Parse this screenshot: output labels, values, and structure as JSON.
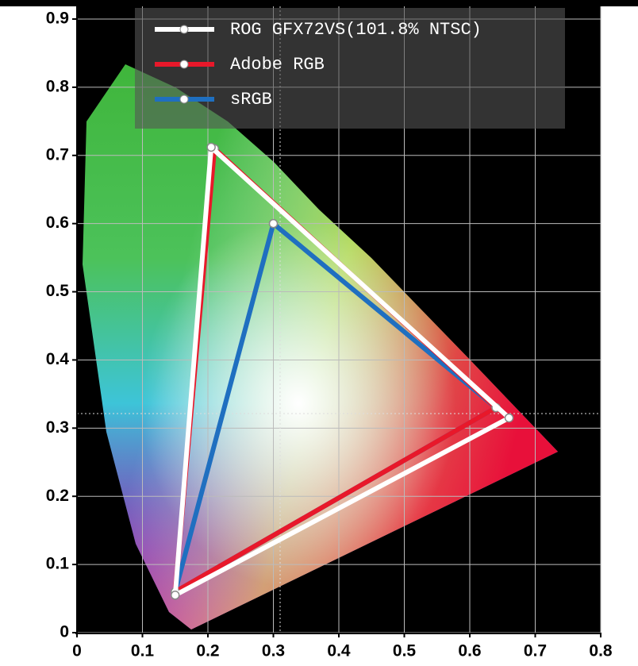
{
  "chart_data": {
    "type": "line",
    "series": [
      {
        "name": "sRGB",
        "color": "#1f6fc0",
        "x": [
          0.64,
          0.3,
          0.15
        ],
        "values": [
          0.33,
          0.6,
          0.06
        ]
      },
      {
        "name": "Adobe RGB",
        "color": "#e8182a",
        "x": [
          0.64,
          0.21,
          0.15
        ],
        "values": [
          0.33,
          0.71,
          0.06
        ]
      },
      {
        "name": "ROG GFX72VS(101.8% NTSC)",
        "color": "#ffffff",
        "x": [
          0.66,
          0.205,
          0.15
        ],
        "values": [
          0.315,
          0.712,
          0.055
        ]
      }
    ],
    "xlim": [
      0,
      0.8
    ],
    "xticks": [
      0,
      0.1,
      0.2,
      0.3,
      0.4,
      0.5,
      0.6,
      0.7,
      0.8
    ],
    "ylim": [
      0,
      0.9
    ],
    "yticks": [
      0,
      0.1,
      0.2,
      0.3,
      0.4,
      0.5,
      0.6,
      0.7,
      0.8,
      0.9
    ],
    "grid": true
  }
}
